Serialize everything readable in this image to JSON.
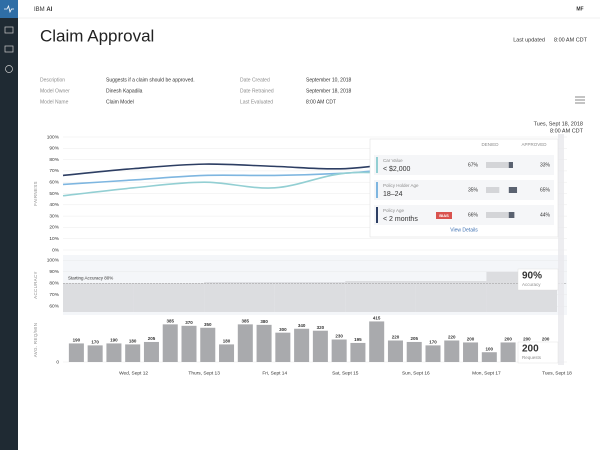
{
  "header": {
    "brand": "IBM",
    "brand_bold": "AI",
    "user": "MF"
  },
  "page": {
    "title": "Claim Approval",
    "updated_label": "Last updated",
    "updated_value": "8:00 AM CDT"
  },
  "metadata": {
    "left": [
      {
        "label": "Description",
        "value": "Suggests if a claim should be approved."
      },
      {
        "label": "Model Owner",
        "value": "Dinesh Kapadila"
      },
      {
        "label": "Model Name",
        "value": "Claim Model"
      }
    ],
    "right": [
      {
        "label": "Date Created",
        "value": "September 10, 2018"
      },
      {
        "label": "Date Retrained",
        "value": "September 18, 2018"
      },
      {
        "label": "Last Evaluated",
        "value": "8:00 AM CDT"
      }
    ]
  },
  "chart_data": {
    "type": "line",
    "categories": [
      null,
      "Wed, Sept 12",
      "Thurs, Sept 13",
      "Fri, Sept 14",
      "Sat, Sept 15",
      "Sun, Sept 16",
      "Mon, Sept 17",
      "Tues, Sept 18"
    ],
    "fairness": {
      "ylabel": "FAIRNESS",
      "ylim": [
        0,
        100
      ],
      "yticks": [
        {
          "value": 100,
          "label": "100%"
        },
        {
          "value": 90,
          "label": "90%"
        },
        {
          "value": 80,
          "label": "80%"
        },
        {
          "value": 70,
          "label": "70%"
        },
        {
          "value": 60,
          "label": "60%"
        },
        {
          "value": 50,
          "label": "50%"
        },
        {
          "value": 40,
          "label": "40%"
        },
        {
          "value": 30,
          "label": "30%"
        },
        {
          "value": 20,
          "label": "20%"
        },
        {
          "value": 10,
          "label": "10%"
        },
        {
          "value": 0,
          "label": "0%"
        }
      ],
      "series": [
        {
          "color": "#2d3e63",
          "values": [
            66,
            72,
            76,
            74,
            72,
            80,
            92,
            92
          ]
        },
        {
          "color": "#7eb6e0",
          "values": [
            58,
            62,
            66,
            66,
            68,
            72,
            64,
            62
          ]
        },
        {
          "color": "#93cfd3",
          "values": [
            48,
            55,
            60,
            55,
            68,
            66,
            60,
            58
          ]
        }
      ]
    },
    "accuracy": {
      "ylabel": "ACCURACY",
      "ylim": [
        55,
        102
      ],
      "yticks": [
        {
          "value": 100,
          "label": "100%"
        },
        {
          "value": 90,
          "label": "90%"
        },
        {
          "value": 80,
          "label": "80%"
        },
        {
          "value": 70,
          "label": "70%"
        },
        {
          "value": 60,
          "label": "60%"
        }
      ],
      "values": [
        80,
        80,
        81,
        81,
        82,
        82,
        90
      ],
      "baseline": 80,
      "baseline_label": "Starting Accuracy 80%",
      "callout_value": "90%",
      "callout_label": "Accuracy"
    },
    "requests": {
      "ylabel": "AVG. REQ/MIN",
      "ylim": [
        0,
        450
      ],
      "yticks": [
        0
      ],
      "values": [
        190,
        170,
        190,
        180,
        205,
        385,
        370,
        350,
        180,
        385,
        380,
        300,
        340,
        320,
        230,
        195,
        415,
        220,
        205,
        170,
        220,
        200,
        100,
        200,
        200,
        200
      ],
      "callout_value": "200",
      "callout_label": "Requests"
    }
  },
  "tooltip": {
    "date": "Tues, Sept 18, 2018",
    "time": "8:00 AM CDT",
    "col_denied": "DENIED",
    "col_approved": "APPROVED",
    "rows": [
      {
        "label": "Car Value",
        "value": "< $2,000",
        "color": "#93cfd3",
        "values": [
          67,
          33
        ],
        "value_labels": [
          "67%",
          "33%"
        ]
      },
      {
        "label": "Policy Holder Age",
        "value": "18–24",
        "color": "#7eb6e0",
        "values": [
          35,
          65
        ],
        "value_labels": [
          "35%",
          "65%"
        ]
      },
      {
        "label": "Policy Age",
        "value": "< 2 months",
        "color": "#2d3e63",
        "badge": "BIAS",
        "values": [
          66,
          44
        ],
        "value_labels": [
          "66%",
          "44%"
        ]
      }
    ],
    "link": "View Details"
  }
}
